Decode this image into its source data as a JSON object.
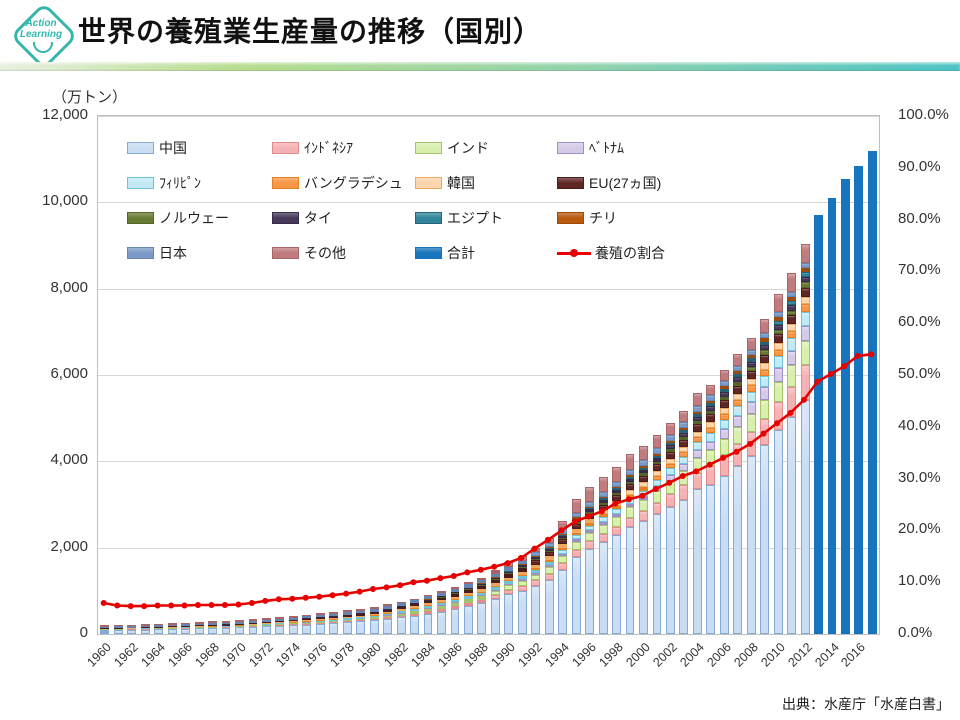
{
  "header": {
    "logo_line1": "Action",
    "logo_line2": "Learning",
    "title": "世界の養殖業生産量の推移（国別）"
  },
  "chart": {
    "unit_label": "（万トン）",
    "source": "出典：水産庁「水産白書」"
  },
  "chart_data": {
    "type": "bar",
    "subtype": "stacked-bars-with-line",
    "title": "世界の養殖業生産量の推移（国別）",
    "ylabel_left": "(万トン)",
    "grid": true,
    "legend_position": "top-inside",
    "left_axis": {
      "min": 0,
      "max": 12000,
      "step": 2000,
      "tick_labels": [
        "0",
        "2,000",
        "4,000",
        "6,000",
        "8,000",
        "10,000",
        "12,000"
      ]
    },
    "right_axis": {
      "min": 0,
      "max": 100,
      "step": 10,
      "tick_labels": [
        "0.0%",
        "10.0%",
        "20.0%",
        "30.0%",
        "40.0%",
        "50.0%",
        "60.0%",
        "70.0%",
        "80.0%",
        "90.0%",
        "100.0%"
      ]
    },
    "x_years": [
      1960,
      1961,
      1962,
      1963,
      1964,
      1965,
      1966,
      1967,
      1968,
      1969,
      1970,
      1971,
      1972,
      1973,
      1974,
      1975,
      1976,
      1977,
      1978,
      1979,
      1980,
      1981,
      1982,
      1983,
      1984,
      1985,
      1986,
      1987,
      1988,
      1989,
      1990,
      1991,
      1992,
      1993,
      1994,
      1995,
      1996,
      1997,
      1998,
      1999,
      2000,
      2001,
      2002,
      2003,
      2004,
      2005,
      2006,
      2007,
      2008,
      2009,
      2010,
      2011,
      2012,
      2013,
      2014,
      2015,
      2016,
      2017
    ],
    "x_tick_years": [
      1960,
      1962,
      1964,
      1966,
      1968,
      1970,
      1972,
      1974,
      1976,
      1978,
      1980,
      1982,
      1984,
      1986,
      1988,
      1990,
      1992,
      1994,
      1996,
      1998,
      2000,
      2002,
      2004,
      2006,
      2008,
      2010,
      2012,
      2014,
      2016
    ],
    "stacked_years_range": [
      1960,
      2012
    ],
    "stacked_series": [
      {
        "id": "china",
        "label": "中国",
        "fill": "#c9ddf4",
        "border": "#85aad4",
        "values": [
          90,
          93,
          98,
          103,
          110,
          115,
          122,
          130,
          137,
          145,
          155,
          166,
          176,
          189,
          202,
          218,
          234,
          253,
          272,
          293,
          320,
          349,
          383,
          422,
          468,
          520,
          578,
          642,
          707,
          812,
          924,
          1005,
          1120,
          1260,
          1493,
          1794,
          1972,
          2124,
          2283,
          2481,
          2622,
          2772,
          2940,
          3108,
          3348,
          3462,
          3672,
          3888,
          4122,
          4380,
          4734,
          5022,
          5424
        ]
      },
      {
        "id": "indonesia",
        "label": "ｲﾝﾄﾞﾈｼｱ",
        "fill": "#f5b2b4",
        "border": "#e38c8e",
        "values": [
          8,
          9,
          9,
          10,
          10,
          11,
          11,
          12,
          12,
          12,
          13,
          15,
          17,
          19,
          21,
          23,
          24,
          26,
          28,
          30,
          32,
          39,
          46,
          53,
          60,
          66,
          73,
          80,
          87,
          94,
          101,
          113,
          125,
          136,
          148,
          160,
          172,
          184,
          195,
          207,
          219,
          260,
          301,
          343,
          384,
          425,
          466,
          507,
          549,
          590,
          631,
          700,
          814
        ]
      },
      {
        "id": "india",
        "label": "インド",
        "fill": "#d9efad",
        "border": "#a4c36b",
        "values": [
          8,
          9,
          9,
          10,
          11,
          12,
          12,
          13,
          14,
          14,
          15,
          17,
          18,
          20,
          22,
          24,
          25,
          27,
          29,
          30,
          32,
          39,
          46,
          53,
          60,
          66,
          73,
          80,
          87,
          94,
          101,
          117,
          133,
          149,
          165,
          182,
          198,
          214,
          230,
          246,
          262,
          283,
          304,
          325,
          346,
          368,
          389,
          410,
          431,
          452,
          473,
          500,
          542
        ]
      },
      {
        "id": "vietnam",
        "label": "ﾍﾞﾄﾅﾑ",
        "fill": "#d5cbe8",
        "border": "#9e8fc4",
        "values": [
          2,
          2,
          2,
          2,
          2,
          2,
          3,
          3,
          3,
          3,
          3,
          3,
          4,
          4,
          4,
          5,
          5,
          5,
          5,
          6,
          6,
          8,
          10,
          12,
          14,
          15,
          17,
          19,
          21,
          23,
          25,
          31,
          37,
          44,
          50,
          56,
          62,
          68,
          75,
          81,
          87,
          110,
          133,
          156,
          179,
          202,
          224,
          247,
          270,
          293,
          316,
          335,
          362
        ]
      },
      {
        "id": "philippines",
        "label": "ﾌｨﾘﾋﾟﾝ",
        "fill": "#c3eaf4",
        "border": "#6fc3d9",
        "values": [
          2,
          3,
          3,
          4,
          4,
          5,
          5,
          5,
          6,
          6,
          7,
          10,
          12,
          15,
          17,
          20,
          22,
          25,
          27,
          30,
          32,
          36,
          39,
          43,
          46,
          50,
          53,
          57,
          60,
          64,
          67,
          73,
          80,
          86,
          93,
          99,
          105,
          112,
          118,
          125,
          131,
          146,
          160,
          175,
          189,
          204,
          218,
          233,
          247,
          262,
          276,
          293,
          316
        ]
      },
      {
        "id": "bangladesh",
        "label": "バングラデシュ",
        "fill": "#f79646",
        "border": "#e38124",
        "values": [
          3,
          3,
          3,
          4,
          4,
          4,
          4,
          4,
          5,
          5,
          5,
          6,
          6,
          7,
          7,
          8,
          8,
          9,
          9,
          10,
          10,
          12,
          13,
          15,
          16,
          18,
          19,
          21,
          22,
          24,
          25,
          31,
          37,
          44,
          50,
          56,
          62,
          68,
          75,
          81,
          87,
          94,
          101,
          108,
          115,
          123,
          130,
          137,
          144,
          151,
          158,
          167,
          181
        ]
      },
      {
        "id": "korea",
        "label": "韓国",
        "fill": "#fbd5ad",
        "border": "#f0a860",
        "values": [
          5,
          6,
          7,
          7,
          8,
          9,
          10,
          11,
          11,
          12,
          13,
          15,
          17,
          19,
          21,
          23,
          24,
          26,
          28,
          30,
          32,
          36,
          39,
          43,
          46,
          50,
          53,
          57,
          60,
          64,
          67,
          71,
          75,
          80,
          84,
          88,
          92,
          96,
          101,
          105,
          109,
          114,
          119,
          124,
          129,
          134,
          138,
          143,
          148,
          153,
          158,
          167,
          181
        ]
      },
      {
        "id": "eu27",
        "label": "EU(27ヵ国)",
        "fill": "#5f2624",
        "border": "#4a1d1c",
        "values": [
          16,
          17,
          17,
          18,
          19,
          20,
          20,
          21,
          22,
          22,
          23,
          25,
          26,
          28,
          29,
          31,
          32,
          34,
          35,
          37,
          38,
          43,
          47,
          52,
          56,
          61,
          66,
          70,
          75,
          79,
          84,
          91,
          98,
          105,
          112,
          119,
          125,
          132,
          139,
          146,
          153,
          157,
          162,
          166,
          171,
          175,
          179,
          184,
          188,
          193,
          197,
          201,
          208
        ]
      },
      {
        "id": "norway",
        "label": "ノルウェー",
        "fill": "#697c34",
        "border": "#55652a",
        "values": [
          1,
          1,
          1,
          1,
          1,
          1,
          1,
          1,
          1,
          1,
          1,
          1,
          1,
          2,
          2,
          2,
          2,
          2,
          3,
          3,
          3,
          4,
          6,
          7,
          9,
          10,
          11,
          13,
          14,
          16,
          17,
          21,
          24,
          28,
          31,
          35,
          38,
          42,
          45,
          49,
          52,
          57,
          62,
          67,
          72,
          78,
          83,
          88,
          93,
          98,
          103,
          110,
          127
        ]
      },
      {
        "id": "thailand",
        "label": "タイ",
        "fill": "#453859",
        "border": "#372c47",
        "values": [
          2,
          2,
          2,
          3,
          3,
          3,
          3,
          3,
          4,
          4,
          4,
          5,
          5,
          6,
          6,
          7,
          8,
          8,
          9,
          9,
          10,
          12,
          15,
          17,
          20,
          22,
          24,
          27,
          29,
          32,
          34,
          39,
          45,
          50,
          55,
          61,
          66,
          71,
          76,
          82,
          87,
          90,
          93,
          96,
          99,
          103,
          106,
          109,
          112,
          115,
          118,
          120,
          118
        ]
      },
      {
        "id": "egypt",
        "label": "エジプト",
        "fill": "#31859c",
        "border": "#266375",
        "values": [
          1,
          1,
          1,
          1,
          1,
          1,
          1,
          1,
          1,
          1,
          1,
          1,
          1,
          1,
          1,
          2,
          2,
          2,
          2,
          2,
          2,
          3,
          3,
          4,
          4,
          5,
          6,
          6,
          7,
          7,
          8,
          12,
          15,
          19,
          22,
          26,
          30,
          33,
          37,
          40,
          44,
          49,
          54,
          59,
          64,
          70,
          75,
          80,
          85,
          90,
          95,
          103,
          118
        ]
      },
      {
        "id": "chile",
        "label": "チリ",
        "fill": "#b95a0f",
        "border": "#9c4c0d",
        "values": [
          0,
          0,
          0,
          0,
          0,
          0,
          0,
          0,
          0,
          0,
          0,
          0,
          0,
          0,
          0,
          0,
          1,
          1,
          1,
          1,
          1,
          2,
          2,
          3,
          4,
          5,
          5,
          6,
          7,
          7,
          8,
          12,
          15,
          19,
          22,
          26,
          30,
          33,
          37,
          40,
          44,
          48,
          51,
          55,
          58,
          62,
          65,
          69,
          72,
          76,
          79,
          84,
          90
        ]
      },
      {
        "id": "japan",
        "label": "日本",
        "fill": "#7b9ac9",
        "border": "#6585b5",
        "values": [
          30,
          31,
          33,
          34,
          35,
          37,
          38,
          39,
          40,
          42,
          43,
          45,
          47,
          49,
          51,
          54,
          56,
          58,
          60,
          62,
          64,
          66,
          68,
          70,
          72,
          74,
          76,
          78,
          80,
          82,
          84,
          89,
          93,
          98,
          103,
          108,
          112,
          117,
          122,
          126,
          131,
          130,
          128,
          127,
          126,
          125,
          123,
          122,
          121,
          119,
          118,
          120,
          118
        ]
      },
      {
        "id": "others",
        "label": "その他",
        "fill": "#bf7b7e",
        "border": "#a86568",
        "values": [
          32,
          28,
          30,
          28,
          32,
          30,
          35,
          37,
          39,
          43,
          47,
          41,
          40,
          36,
          37,
          33,
          37,
          39,
          42,
          47,
          58,
          41,
          33,
          26,
          25,
          28,
          36,
          44,
          54,
          92,
          135,
          105,
          103,
          112,
          192,
          310,
          336,
          336,
          337,
          361,
          342,
          310,
          292,
          271,
          300,
          239,
          252,
          263,
          288,
          328,
          434,
          448,
          441
        ]
      }
    ],
    "total_bars": {
      "id": "total",
      "label": "合計",
      "color": "#1874bc",
      "years": [
        2013,
        2014,
        2015,
        2016,
        2017
      ],
      "values": [
        9700,
        10100,
        10550,
        10850,
        11200
      ]
    },
    "ratio_line": {
      "id": "aquaculture-share",
      "label": "養殖の割合",
      "color": "#e60000",
      "axis": "right",
      "values": [
        5.8,
        5.3,
        5.2,
        5.2,
        5.3,
        5.3,
        5.3,
        5.4,
        5.4,
        5.4,
        5.5,
        5.8,
        6.2,
        6.5,
        6.6,
        6.8,
        7.0,
        7.3,
        7.6,
        8.0,
        8.5,
        8.8,
        9.2,
        9.8,
        10.1,
        10.6,
        11.0,
        11.7,
        12.2,
        12.8,
        13.5,
        14.5,
        16.3,
        18.0,
        19.8,
        21.5,
        22.5,
        23.5,
        25.0,
        25.8,
        26.5,
        27.8,
        29.0,
        30.3,
        31.2,
        32.5,
        33.8,
        35.0,
        36.5,
        38.5,
        40.5,
        42.5,
        45.0,
        48.5,
        50.0,
        51.5,
        53.5,
        53.8
      ]
    }
  }
}
